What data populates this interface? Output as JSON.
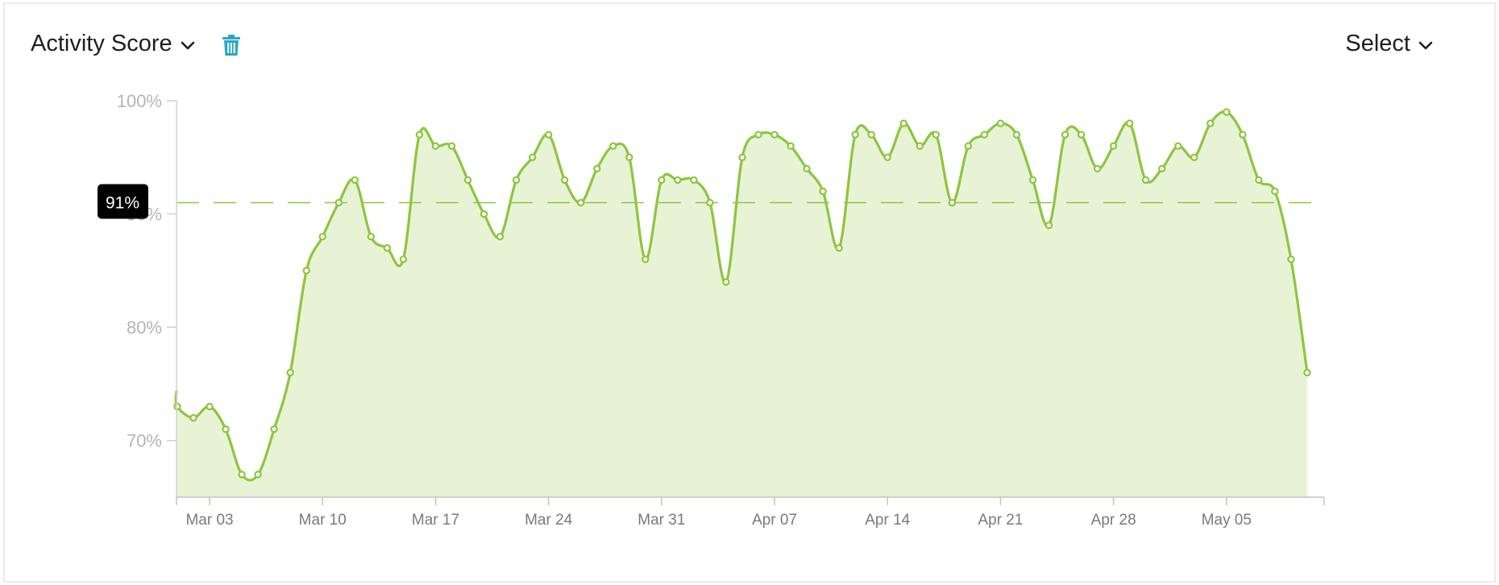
{
  "header": {
    "metric_label": "Activity Score",
    "range_label": "Select"
  },
  "icons": {
    "metric_dropdown": "chevron-down-icon",
    "delete": "trash-icon",
    "range_dropdown": "chevron-down-icon"
  },
  "colors": {
    "line": "#8dc63f",
    "fill": "#e8f3d6",
    "trash": "#29a8c4",
    "badge": "#000000"
  },
  "chart_data": {
    "type": "area",
    "title": "",
    "xlabel": "",
    "ylabel": "",
    "ylim": [
      65,
      100
    ],
    "y_ticks": [
      70,
      80,
      90,
      100
    ],
    "y_tick_labels": [
      "70%",
      "80%",
      "90%",
      "100%"
    ],
    "x_start": "Mar 01",
    "x_ticks": [
      "Mar 03",
      "Mar 10",
      "Mar 17",
      "Mar 24",
      "Mar 31",
      "Apr 07",
      "Apr 14",
      "Apr 21",
      "Apr 28",
      "May 05"
    ],
    "average": 91,
    "average_label": "91%",
    "series": [
      {
        "values": [
          73,
          72,
          73,
          71,
          67,
          67,
          71,
          76,
          85,
          88,
          91,
          93,
          88,
          87,
          86,
          97,
          96,
          96,
          93,
          90,
          88,
          93,
          95,
          97,
          93,
          91,
          94,
          96,
          95,
          86,
          93,
          93,
          93,
          91,
          84,
          95,
          97,
          97,
          96,
          94,
          92,
          87,
          97,
          97,
          95,
          98,
          96,
          97,
          91,
          96,
          97,
          98,
          97,
          93,
          89,
          97,
          97,
          94,
          96,
          98,
          93,
          94,
          96,
          95,
          98,
          99,
          97,
          93,
          92,
          86,
          76
        ]
      }
    ]
  }
}
